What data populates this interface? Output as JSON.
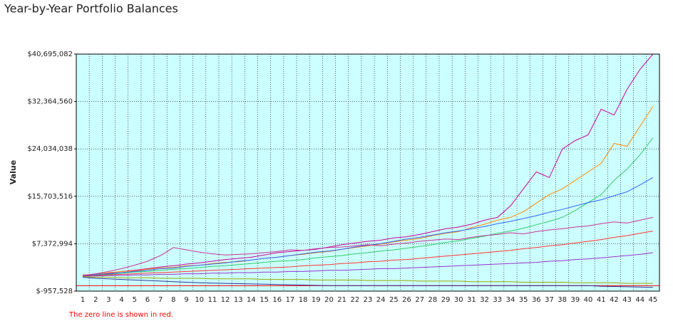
{
  "chart_data": {
    "type": "line",
    "title": "Year-by-Year Portfolio Balances",
    "y_label": "Value",
    "footnote": "The zero line is shown in red.",
    "zero_line": 0,
    "zero_line_color": "#ff0000",
    "background": "#ccffff",
    "grid": true,
    "categories": [
      "1",
      "2",
      "3",
      "4",
      "5",
      "6",
      "7",
      "8",
      "9",
      "10",
      "11",
      "12",
      "13",
      "14",
      "15",
      "16",
      "17",
      "18",
      "19",
      "20",
      "21",
      "22",
      "23",
      "24",
      "25",
      "26",
      "27",
      "28",
      "29",
      "30",
      "31",
      "32",
      "33",
      "34",
      "35",
      "36",
      "37",
      "38",
      "39",
      "40",
      "41",
      "42",
      "43",
      "44",
      "45"
    ],
    "ylim": [
      -957528,
      40695082
    ],
    "yticks": [
      {
        "value": -957528,
        "label": "$-957,528"
      },
      {
        "value": 7372994,
        "label": "$7,372,994"
      },
      {
        "value": 15703516,
        "label": "$15,703,516"
      },
      {
        "value": 24034038,
        "label": "$24,034,038"
      },
      {
        "value": 32364560,
        "label": "$32,364,560"
      },
      {
        "value": 40695082,
        "label": "$40,695,082"
      }
    ],
    "series": [
      {
        "color": "#cc0099",
        "values": [
          1800000,
          2000000,
          2200000,
          2500000,
          2700000,
          3000000,
          3300000,
          3500000,
          3800000,
          4000000,
          4300000,
          4600000,
          4800000,
          5000000,
          5400000,
          5800000,
          6000000,
          6200000,
          6400000,
          6800000,
          7200000,
          7500000,
          7800000,
          8000000,
          8400000,
          8600000,
          9000000,
          9500000,
          10000000,
          10300000,
          10800000,
          11500000,
          12000000,
          14000000,
          17000000,
          20000000,
          19000000,
          24000000,
          25500000,
          26500000,
          31000000,
          30000000,
          34500000,
          38000000,
          40695082
        ]
      },
      {
        "color": "#ff8800",
        "values": [
          1900000,
          2000000,
          2300000,
          2500000,
          2600000,
          2900000,
          3100000,
          3200000,
          3500000,
          3600000,
          3900000,
          4100000,
          4200000,
          4500000,
          4800000,
          5000000,
          5300000,
          5500000,
          5800000,
          6000000,
          6400000,
          6700000,
          7000000,
          7300000,
          7700000,
          8000000,
          8300000,
          8800000,
          9200000,
          9500000,
          10200000,
          10800000,
          11500000,
          12000000,
          13000000,
          14500000,
          16000000,
          17000000,
          18500000,
          20000000,
          21500000,
          25000000,
          24500000,
          28000000,
          31500000
        ]
      },
      {
        "color": "#33cc66",
        "values": [
          1700000,
          1900000,
          2000000,
          2200000,
          2400000,
          2500000,
          2700000,
          2900000,
          3000000,
          3200000,
          3400000,
          3500000,
          3700000,
          3900000,
          4100000,
          4300000,
          4400000,
          4600000,
          4900000,
          5100000,
          5300000,
          5600000,
          5800000,
          6100000,
          6300000,
          6600000,
          6900000,
          7200000,
          7600000,
          7900000,
          8300000,
          8700000,
          9200000,
          9600000,
          10100000,
          10700000,
          11300000,
          12000000,
          13200000,
          14600000,
          16000000,
          18500000,
          20500000,
          23000000,
          26000000
        ]
      },
      {
        "color": "#3366ff",
        "values": [
          1800000,
          2000000,
          2100000,
          2300000,
          2500000,
          2700000,
          3000000,
          3100000,
          3400000,
          3600000,
          3800000,
          4000000,
          4300000,
          4500000,
          4800000,
          5000000,
          5300000,
          5600000,
          5900000,
          6100000,
          6400000,
          6800000,
          7100000,
          7400000,
          7800000,
          8200000,
          8500000,
          8900000,
          9300000,
          9600000,
          10000000,
          10400000,
          10900000,
          11300000,
          11800000,
          12300000,
          12900000,
          13400000,
          14000000,
          14600000,
          15100000,
          15800000,
          16500000,
          17700000,
          19000000
        ]
      },
      {
        "color": "#cc3399",
        "values": [
          1800000,
          2100000,
          2500000,
          3000000,
          3600000,
          4300000,
          5300000,
          6700000,
          6300000,
          5900000,
          5600000,
          5400000,
          5500000,
          5600000,
          5800000,
          6000000,
          6300000,
          6200000,
          6500000,
          6700000,
          6800000,
          7000000,
          7200000,
          7000000,
          7300000,
          7500000,
          7800000,
          8000000,
          8200000,
          8100000,
          8500000,
          8800000,
          9000000,
          9300000,
          9100000,
          9500000,
          9800000,
          10000000,
          10300000,
          10500000,
          10900000,
          11200000,
          11000000,
          11500000,
          12000000
        ]
      },
      {
        "color": "#ff3333",
        "values": [
          1700000,
          1800000,
          1900000,
          2000000,
          2100000,
          2200000,
          2300000,
          2400000,
          2500000,
          2600000,
          2700000,
          2800000,
          2900000,
          3000000,
          3100000,
          3200000,
          3300000,
          3500000,
          3600000,
          3700000,
          3900000,
          4000000,
          4200000,
          4300000,
          4500000,
          4600000,
          4800000,
          5000000,
          5200000,
          5400000,
          5600000,
          5800000,
          6000000,
          6200000,
          6500000,
          6700000,
          7000000,
          7200000,
          7500000,
          7800000,
          8100000,
          8500000,
          8800000,
          9200000,
          9600000
        ]
      },
      {
        "color": "#9933cc",
        "values": [
          1700000,
          1700000,
          1800000,
          1800000,
          1900000,
          1900000,
          2000000,
          2000000,
          2100000,
          2100000,
          2200000,
          2200000,
          2300000,
          2300000,
          2400000,
          2400000,
          2500000,
          2500000,
          2600000,
          2700000,
          2700000,
          2800000,
          2900000,
          3000000,
          3000000,
          3100000,
          3200000,
          3300000,
          3400000,
          3500000,
          3600000,
          3700000,
          3800000,
          3900000,
          4000000,
          4100000,
          4300000,
          4400000,
          4600000,
          4700000,
          4900000,
          5100000,
          5300000,
          5500000,
          5800000
        ]
      },
      {
        "color": "#99aa00",
        "values": [
          1600000,
          1500000,
          1500000,
          1400000,
          1400000,
          1400000,
          1300000,
          1300000,
          1300000,
          1300000,
          1200000,
          1200000,
          1200000,
          1200000,
          1100000,
          1100000,
          1100000,
          1100000,
          1000000,
          1000000,
          1000000,
          1000000,
          900000,
          900000,
          900000,
          900000,
          800000,
          800000,
          800000,
          800000,
          700000,
          700000,
          700000,
          700000,
          600000,
          600000,
          600000,
          600000,
          500000,
          500000,
          500000,
          500000,
          400000,
          400000,
          400000
        ]
      },
      {
        "color": "#333399",
        "values": [
          1500000,
          1300000,
          1200000,
          1100000,
          1000000,
          900000,
          800000,
          700000,
          600000,
          500000,
          450000,
          400000,
          350000,
          300000,
          250000,
          200000,
          150000,
          100000,
          50000,
          0,
          0,
          0,
          0,
          0,
          0,
          0,
          0,
          0,
          0,
          0,
          0,
          0,
          0,
          0,
          0,
          0,
          0,
          0,
          0,
          0,
          -100000,
          -150000,
          -200000,
          -250000,
          -300000
        ]
      }
    ]
  }
}
